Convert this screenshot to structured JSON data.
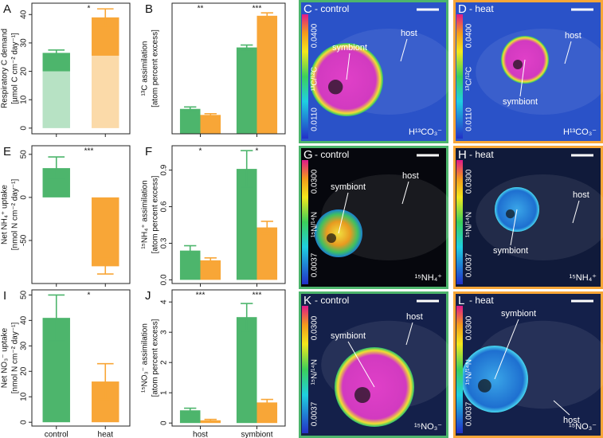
{
  "chart_data": [
    {
      "type": "bar",
      "panel": "A",
      "stacked": true,
      "ylabel": [
        "Respiratory C demand",
        "[µmol C cm⁻² day⁻¹]"
      ],
      "categories": [
        null,
        null
      ],
      "series": [
        {
          "colors": [
            "#b7e2c4",
            "#fbdaa9"
          ],
          "values": [
            20,
            25.5
          ]
        },
        {
          "colors": [
            "#4db56c",
            "#f8a637"
          ],
          "values": [
            6.5,
            13.5
          ],
          "errors": [
            1,
            3
          ]
        }
      ],
      "ylim": [
        -2,
        44
      ],
      "yticks": [
        0,
        10,
        20,
        30,
        40
      ],
      "significance": "*"
    },
    {
      "type": "bar",
      "panel": "B",
      "ylabel": [
        "¹³C assimilation",
        "[atom percent excess]"
      ],
      "categories": [
        null,
        null
      ],
      "series": [
        {
          "color": "#4db56c",
          "values": [
            1.03,
            3.57
          ],
          "errors": [
            0.08,
            0.1
          ]
        },
        {
          "color": "#f8a637",
          "values": [
            0.78,
            4.88
          ],
          "errors": [
            0.05,
            0.12
          ]
        }
      ],
      "ylim": [
        0,
        5.4
      ],
      "significance": [
        "**",
        "***"
      ]
    },
    {
      "type": "bar",
      "panel": "E",
      "ylabel": [
        "Net NH₄⁺ uptake",
        "[nmol N cm⁻² day⁻¹]"
      ],
      "categories": [
        null,
        null
      ],
      "series": [
        {
          "colors": [
            "#4db56c",
            "#f8a637"
          ],
          "values": [
            34,
            -80
          ],
          "errors": [
            13,
            9
          ]
        }
      ],
      "ylim": [
        -100,
        60
      ],
      "yticks": [
        -50,
        0,
        50
      ],
      "significance": "***"
    },
    {
      "type": "bar",
      "panel": "F",
      "ylabel": [
        "¹⁵NH₄⁺ assimilation",
        "[atom percent excess]"
      ],
      "categories": [
        null,
        null
      ],
      "series": [
        {
          "color": "#4db56c",
          "values": [
            0.24,
            0.91
          ],
          "errors": [
            0.04,
            0.15
          ]
        },
        {
          "color": "#f8a637",
          "values": [
            0.16,
            0.43
          ],
          "errors": [
            0.02,
            0.05
          ]
        }
      ],
      "ylim": [
        -0.03,
        1.1
      ],
      "yticks": [
        {
          "value": 0,
          "label": "0.0"
        },
        0.3,
        0.6,
        0.9
      ],
      "significance": [
        "*",
        "*"
      ]
    },
    {
      "type": "bar",
      "panel": "I",
      "ylabel": [
        "Net NO₃⁻ uptake",
        "[nmol N cm⁻² day⁻¹]"
      ],
      "categories": [
        "control",
        "heat"
      ],
      "series": [
        {
          "colors": [
            "#4db56c",
            "#f8a637"
          ],
          "values": [
            41,
            16
          ],
          "errors": [
            9,
            7
          ]
        }
      ],
      "ylim": [
        -1.5,
        52
      ],
      "yticks": [
        0,
        10,
        20,
        30,
        40,
        50
      ],
      "significance": "*"
    },
    {
      "type": "bar",
      "panel": "J",
      "ylabel": [
        "¹⁵NO₃⁻ assimilation",
        "[atom percent excess]"
      ],
      "categories": [
        "host",
        "symbiont"
      ],
      "series": [
        {
          "color": "#4db56c",
          "values": [
            0.42,
            3.5
          ],
          "errors": [
            0.07,
            0.45
          ]
        },
        {
          "color": "#f8a637",
          "values": [
            0.09,
            0.68
          ],
          "errors": [
            0.03,
            0.1
          ]
        }
      ],
      "ylim": [
        -0.1,
        4.4
      ],
      "yticks": [
        0,
        1,
        2,
        3,
        4
      ],
      "significance": [
        "***",
        "***"
      ]
    }
  ],
  "images": [
    {
      "letter": "C",
      "condition": "- control",
      "scale_max": "0.0400",
      "scale_min": "0.0110",
      "ratio": "¹³C/¹²C",
      "label": "H¹³CO₃⁻",
      "symbiont": "symbiont",
      "host": "host"
    },
    {
      "letter": "D",
      "condition": "- heat",
      "scale_max": "0.0400",
      "scale_min": "0.0110",
      "ratio": "¹³C/¹²C",
      "label": "H¹³CO₃⁻",
      "symbiont": "symbiont",
      "host": "host"
    },
    {
      "letter": "G",
      "condition": "- control",
      "scale_max": "0.0300",
      "scale_min": "0.0037",
      "ratio": "¹⁵N/¹⁴N",
      "label": "¹⁵NH₄⁺",
      "symbiont": "symbiont",
      "host": "host"
    },
    {
      "letter": "H",
      "condition": "- heat",
      "scale_max": "0.0300",
      "scale_min": "0.0037",
      "ratio": "¹⁵N/¹⁴N",
      "label": "¹⁵NH₄⁺",
      "symbiont": "symbiont",
      "host": "host"
    },
    {
      "letter": "K",
      "condition": "- control",
      "scale_max": "0.0300",
      "scale_min": "0.0037",
      "ratio": "¹⁵N/¹⁴N",
      "label": "¹⁵NO₃⁻",
      "symbiont": "symbiont",
      "host": "host"
    },
    {
      "letter": "L",
      "condition": "- heat",
      "scale_max": "0.0300",
      "scale_min": "0.0037",
      "ratio": "¹⁵N/¹⁴N",
      "label": "¹⁵NO₃⁻",
      "symbiont": "symbiont",
      "host": "host"
    }
  ]
}
